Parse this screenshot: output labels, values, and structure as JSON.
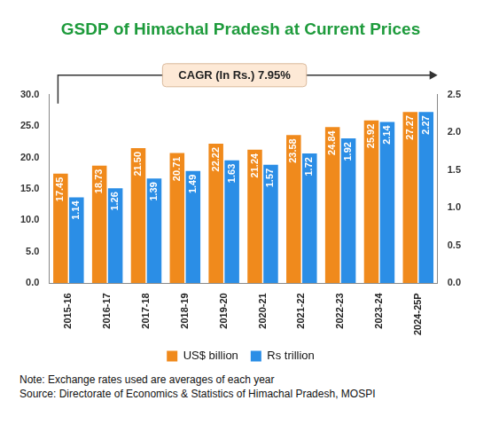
{
  "chart_data": {
    "type": "bar",
    "title": "GSDP of Himachal Pradesh at Current Prices",
    "annotations": [
      {
        "text": "CAGR (In Rs.) 7.95%"
      }
    ],
    "note": "Note: Exchange rates used are averages of each year",
    "source": "Source: Directorate of Economics & Statistics of Himachal Pradesh, MOSPI",
    "categories": [
      "2015-16",
      "2016-17",
      "2017-18",
      "2018-19",
      "2019-20",
      "2020-21",
      "2021-22",
      "2022-23",
      "2023-24",
      "2024-25P"
    ],
    "series": [
      {
        "name": "US$ billion",
        "color": "#f08a1c",
        "axis": "y",
        "values": [
          17.45,
          18.73,
          21.5,
          20.71,
          22.22,
          21.24,
          23.58,
          24.84,
          25.92,
          27.27
        ],
        "value_labels": [
          "17.45",
          "18.73",
          "21.50",
          "20.71",
          "22.22",
          "21.24",
          "23.58",
          "24.84",
          "25.92",
          "27.27"
        ]
      },
      {
        "name": "Rs trillion",
        "color": "#2b8ee6",
        "axis": "y2",
        "values": [
          1.14,
          1.26,
          1.39,
          1.49,
          1.63,
          1.57,
          1.72,
          1.92,
          2.14,
          2.27
        ],
        "value_labels": [
          "1.14",
          "1.26",
          "1.39",
          "1.49",
          "1.63",
          "1.57",
          "1.72",
          "1.92",
          "2.14",
          "2.27"
        ]
      }
    ],
    "ylim": [
      0,
      30
    ],
    "yticks": [
      {
        "value": 0,
        "label": "0.0"
      },
      {
        "value": 5,
        "label": "5.0"
      },
      {
        "value": 10,
        "label": "10.0"
      },
      {
        "value": 15,
        "label": "15.0"
      },
      {
        "value": 20,
        "label": "20.0"
      },
      {
        "value": 25,
        "label": "25.0"
      },
      {
        "value": 30,
        "label": "30.0"
      }
    ],
    "y2lim": [
      0,
      2.5
    ],
    "y2ticks": [
      {
        "value": 0,
        "label": "0.0"
      },
      {
        "value": 0.5,
        "label": "0.5"
      },
      {
        "value": 1,
        "label": "1.0"
      },
      {
        "value": 1.5,
        "label": "1.5"
      },
      {
        "value": 2,
        "label": "2.0"
      },
      {
        "value": 2.5,
        "label": "2.5"
      }
    ],
    "grid": false,
    "legend": "bottom",
    "data_labels": true
  }
}
